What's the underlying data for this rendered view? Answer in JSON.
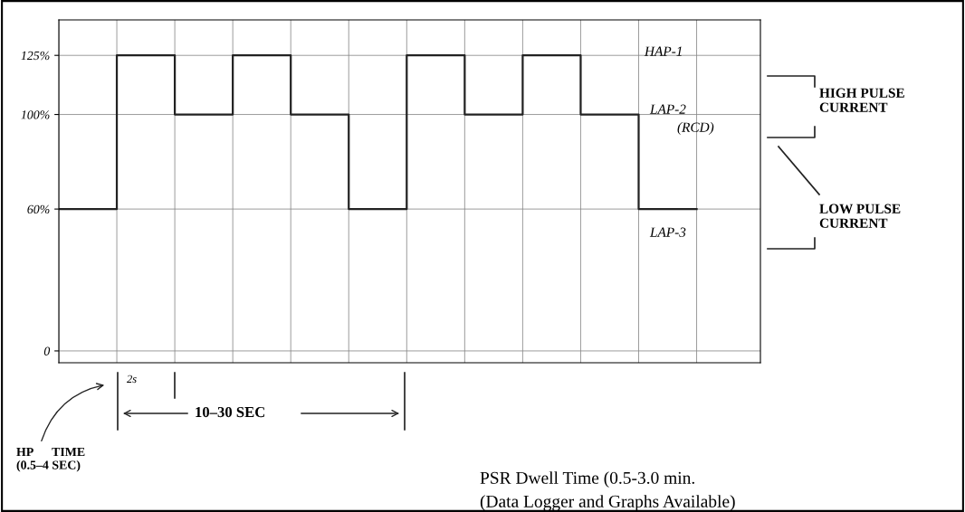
{
  "chart_data": {
    "type": "step",
    "categories": [
      null,
      null,
      null,
      null,
      null,
      null,
      null,
      null,
      null,
      null,
      null,
      null
    ],
    "values": [
      60,
      125,
      100,
      125,
      100,
      60,
      125,
      100,
      125,
      100,
      60,
      60
    ],
    "color": "#222222",
    "ylim": [
      -5,
      140
    ],
    "yticks": [
      0,
      {
        "value": 60,
        "label": "60%"
      },
      {
        "value": 100,
        "label": "100%"
      },
      {
        "value": 125,
        "label": "125%"
      }
    ],
    "tick_labels": "y",
    "grid": true,
    "annotations": [
      "HAP-1",
      "LAP-2",
      "(RCD)",
      "LAP-3",
      "HIGH PULSE CURRENT",
      "LOW PULSE CURRENT",
      "2s",
      "10–30 SEC",
      "HP TIME (0.5–4 SEC)",
      "PSR Dwell Time (0.5-3.0 min.",
      "(Data Logger and Graphs Available)"
    ]
  }
}
